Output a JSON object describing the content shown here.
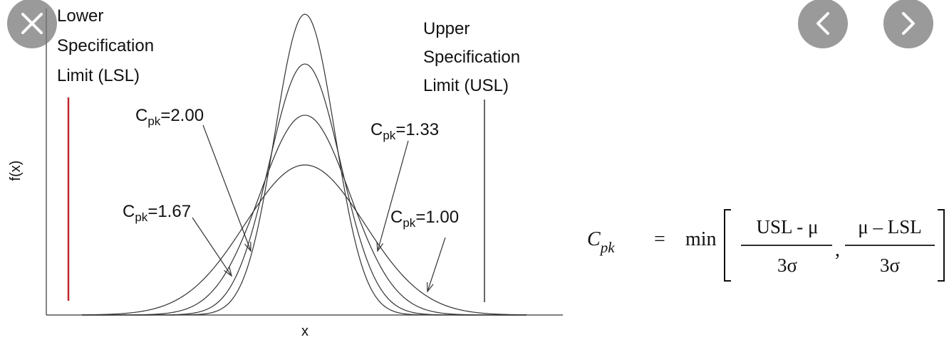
{
  "diagram": {
    "lsl_label": [
      "Lower",
      "Specification",
      "Limit (LSL)"
    ],
    "usl_label": [
      "Upper",
      "Specification",
      "Limit (USL)"
    ],
    "y_axis_label": "f(x)",
    "x_axis_label": "x",
    "curve_labels": [
      {
        "symbol": "C",
        "subscript": "pk",
        "text": "=2.00"
      },
      {
        "symbol": "C",
        "subscript": "pk",
        "text": "=1.33"
      },
      {
        "symbol": "C",
        "subscript": "pk",
        "text": "=1.67"
      },
      {
        "symbol": "C",
        "subscript": "pk",
        "text": "=1.00"
      }
    ],
    "formula": {
      "lhs": "C",
      "lhs_subscript": "pk",
      "equals": "=",
      "operator": "min",
      "fractions": [
        {
          "numerator": "USL - μ",
          "denominator": "3σ"
        },
        {
          "numerator": "μ – LSL",
          "denominator": "3σ"
        }
      ],
      "separator": ","
    }
  }
}
